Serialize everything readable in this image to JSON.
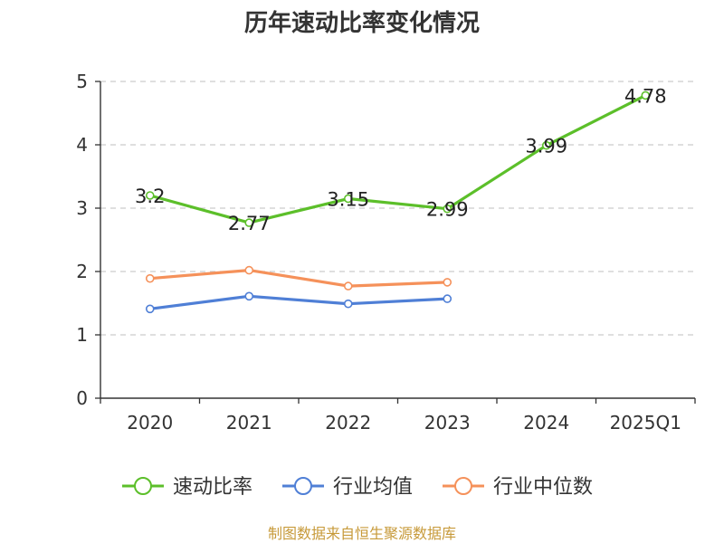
{
  "chart_data": {
    "type": "line",
    "title": "历年速动比率变化情况",
    "categories": [
      "2020",
      "2021",
      "2022",
      "2023",
      "2024",
      "2025Q1"
    ],
    "ylim": [
      0,
      5
    ],
    "yticks": [
      "0",
      "1",
      "2",
      "3",
      "4",
      "5"
    ],
    "grid": true,
    "legend_position": "bottom",
    "series": [
      {
        "name": "速动比率",
        "color": "#5cbf2a",
        "values": [
          3.2,
          2.77,
          3.15,
          2.99,
          3.99,
          4.78
        ],
        "labels": [
          "3.2",
          "2.77",
          "3.15",
          "2.99",
          "3.99",
          "4.78"
        ]
      },
      {
        "name": "行业均值",
        "color": "#4f7fd6",
        "values": [
          1.41,
          1.61,
          1.49,
          1.57,
          null,
          null
        ]
      },
      {
        "name": "行业中位数",
        "color": "#f5915a",
        "values": [
          1.89,
          2.02,
          1.77,
          1.83,
          null,
          null
        ]
      }
    ],
    "source": "制图数据来自恒生聚源数据库"
  }
}
